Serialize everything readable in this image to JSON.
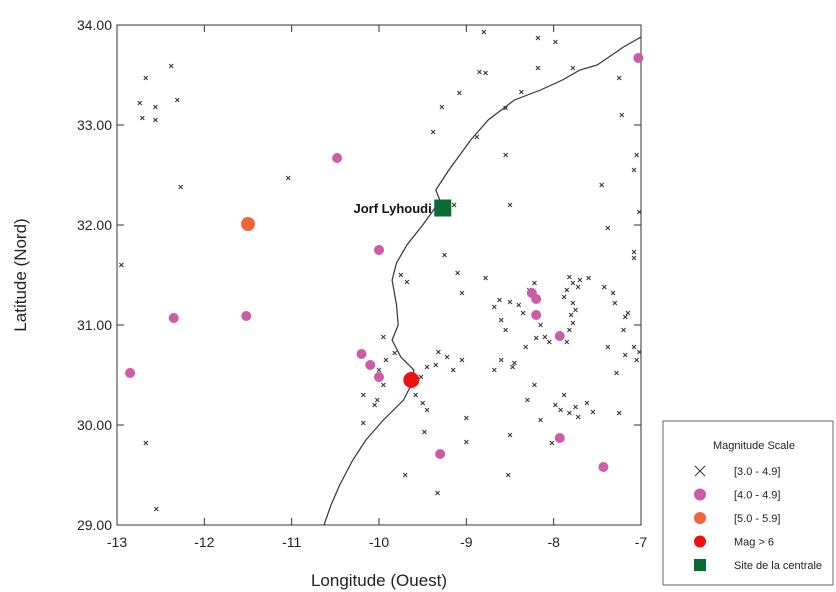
{
  "chart_data": {
    "type": "scatter",
    "title": "",
    "xlabel": "Longitude (Ouest)",
    "ylabel": "Latitude (Nord)",
    "xlim": [
      -13,
      -7
    ],
    "ylim": [
      29,
      34
    ],
    "x_ticks": [
      "-13",
      "-12",
      "-11",
      "-10",
      "-9",
      "-8",
      "-7"
    ],
    "y_ticks": [
      "29.00",
      "30.00",
      "31.00",
      "32.00",
      "33.00",
      "34.00"
    ],
    "grid": false,
    "legend_position": "bottom-right, outside plot",
    "site": {
      "label": "Jorf Lyhoudi",
      "lon": -9.27,
      "lat": 32.17,
      "color": "#0a6b34"
    },
    "coastline": [
      [
        -7.0,
        33.88
      ],
      [
        -7.2,
        33.78
      ],
      [
        -7.5,
        33.6
      ],
      [
        -7.7,
        33.55
      ],
      [
        -7.9,
        33.45
      ],
      [
        -8.15,
        33.35
      ],
      [
        -8.45,
        33.25
      ],
      [
        -8.75,
        33.05
      ],
      [
        -8.95,
        32.85
      ],
      [
        -9.2,
        32.55
      ],
      [
        -9.35,
        32.35
      ],
      [
        -9.3,
        32.24
      ],
      [
        -9.5,
        32.0
      ],
      [
        -9.68,
        31.8
      ],
      [
        -9.8,
        31.62
      ],
      [
        -9.85,
        31.45
      ],
      [
        -9.8,
        31.2
      ],
      [
        -9.78,
        31.0
      ],
      [
        -9.85,
        30.85
      ],
      [
        -9.75,
        30.68
      ],
      [
        -9.6,
        30.55
      ],
      [
        -9.62,
        30.42
      ],
      [
        -9.72,
        30.25
      ],
      [
        -9.95,
        30.05
      ],
      [
        -10.15,
        29.85
      ],
      [
        -10.3,
        29.65
      ],
      [
        -10.45,
        29.4
      ],
      [
        -10.55,
        29.2
      ],
      [
        -10.63,
        29.0
      ]
    ],
    "series": [
      {
        "name": "[3.0 - 4.9]",
        "marker": "x",
        "color": "#333333",
        "points": [
          [
            -12.74,
            33.22
          ],
          [
            -12.67,
            33.47
          ],
          [
            -12.56,
            33.18
          ],
          [
            -12.56,
            33.05
          ],
          [
            -12.38,
            33.59
          ],
          [
            -12.31,
            33.25
          ],
          [
            -12.71,
            33.07
          ],
          [
            -12.27,
            32.38
          ],
          [
            -11.04,
            32.47
          ],
          [
            -12.95,
            31.6
          ],
          [
            -12.67,
            29.82
          ],
          [
            -12.55,
            29.16
          ],
          [
            -8.8,
            33.93
          ],
          [
            -8.18,
            33.87
          ],
          [
            -7.98,
            33.83
          ],
          [
            -8.85,
            33.53
          ],
          [
            -8.78,
            33.52
          ],
          [
            -8.18,
            33.57
          ],
          [
            -7.78,
            33.57
          ],
          [
            -7.25,
            33.47
          ],
          [
            -8.37,
            33.33
          ],
          [
            -9.08,
            33.32
          ],
          [
            -9.28,
            33.18
          ],
          [
            -8.55,
            33.17
          ],
          [
            -7.22,
            33.1
          ],
          [
            -9.38,
            32.93
          ],
          [
            -8.88,
            32.88
          ],
          [
            -8.55,
            32.7
          ],
          [
            -7.05,
            32.7
          ],
          [
            -7.08,
            32.55
          ],
          [
            -7.45,
            32.4
          ],
          [
            -8.5,
            32.2
          ],
          [
            -9.14,
            32.2
          ],
          [
            -7.38,
            31.97
          ],
          [
            -7.02,
            32.13
          ],
          [
            -7.08,
            31.73
          ],
          [
            -7.08,
            31.67
          ],
          [
            -9.75,
            31.5
          ],
          [
            -9.68,
            31.43
          ],
          [
            -9.25,
            31.7
          ],
          [
            -9.1,
            31.52
          ],
          [
            -9.05,
            31.32
          ],
          [
            -8.78,
            31.47
          ],
          [
            -8.62,
            31.25
          ],
          [
            -8.68,
            31.18
          ],
          [
            -8.5,
            31.23
          ],
          [
            -8.4,
            31.2
          ],
          [
            -8.55,
            30.95
          ],
          [
            -8.6,
            31.05
          ],
          [
            -8.22,
            31.42
          ],
          [
            -8.28,
            31.35
          ],
          [
            -8.35,
            31.12
          ],
          [
            -8.15,
            31.0
          ],
          [
            -8.1,
            30.88
          ],
          [
            -8.05,
            30.83
          ],
          [
            -8.2,
            30.87
          ],
          [
            -8.32,
            30.78
          ],
          [
            -7.85,
            30.83
          ],
          [
            -7.82,
            31.48
          ],
          [
            -7.78,
            31.42
          ],
          [
            -7.72,
            31.38
          ],
          [
            -7.7,
            31.45
          ],
          [
            -7.85,
            31.35
          ],
          [
            -7.88,
            31.28
          ],
          [
            -7.78,
            31.22
          ],
          [
            -7.75,
            31.15
          ],
          [
            -7.8,
            31.1
          ],
          [
            -7.78,
            31.02
          ],
          [
            -7.82,
            30.95
          ],
          [
            -7.6,
            31.47
          ],
          [
            -7.42,
            31.38
          ],
          [
            -7.3,
            31.22
          ],
          [
            -7.32,
            31.32
          ],
          [
            -7.18,
            31.08
          ],
          [
            -7.15,
            31.12
          ],
          [
            -7.2,
            30.95
          ],
          [
            -7.08,
            30.78
          ],
          [
            -7.02,
            30.73
          ],
          [
            -7.05,
            30.65
          ],
          [
            -7.18,
            30.7
          ],
          [
            -7.28,
            30.52
          ],
          [
            -7.38,
            30.78
          ],
          [
            -8.6,
            30.65
          ],
          [
            -8.45,
            30.62
          ],
          [
            -8.47,
            30.58
          ],
          [
            -8.22,
            30.4
          ],
          [
            -8.3,
            30.25
          ],
          [
            -7.88,
            30.3
          ],
          [
            -7.98,
            30.2
          ],
          [
            -7.92,
            30.15
          ],
          [
            -7.82,
            30.12
          ],
          [
            -7.75,
            30.18
          ],
          [
            -7.72,
            30.08
          ],
          [
            -7.62,
            30.22
          ],
          [
            -7.55,
            30.13
          ],
          [
            -7.25,
            30.12
          ],
          [
            -8.15,
            30.05
          ],
          [
            -8.02,
            29.82
          ],
          [
            -8.5,
            29.9
          ],
          [
            -8.52,
            29.5
          ],
          [
            -9.22,
            30.68
          ],
          [
            -9.05,
            30.65
          ],
          [
            -9.15,
            30.55
          ],
          [
            -9.32,
            30.73
          ],
          [
            -9.35,
            30.6
          ],
          [
            -9.45,
            30.58
          ],
          [
            -9.52,
            30.48
          ],
          [
            -9.58,
            30.3
          ],
          [
            -9.5,
            30.22
          ],
          [
            -9.45,
            30.15
          ],
          [
            -9.48,
            29.93
          ],
          [
            -9.0,
            30.07
          ],
          [
            -9.0,
            29.83
          ],
          [
            -9.7,
            29.5
          ],
          [
            -9.33,
            29.32
          ],
          [
            -8.68,
            30.55
          ],
          [
            -9.92,
            30.65
          ],
          [
            -9.95,
            30.88
          ],
          [
            -10.0,
            30.55
          ],
          [
            -10.02,
            30.25
          ],
          [
            -10.18,
            30.3
          ],
          [
            -10.05,
            30.2
          ],
          [
            -10.18,
            30.02
          ],
          [
            -9.95,
            30.4
          ],
          [
            -9.82,
            30.72
          ]
        ]
      },
      {
        "name": "[4.0 - 4.9]",
        "marker": "circle",
        "color": "#cc5ba8",
        "points": [
          [
            -7.03,
            33.67
          ],
          [
            -10.48,
            32.67
          ],
          [
            -10.0,
            31.75
          ],
          [
            -12.35,
            31.07
          ],
          [
            -11.52,
            31.09
          ],
          [
            -12.85,
            30.52
          ],
          [
            -10.2,
            30.71
          ],
          [
            -10.1,
            30.6
          ],
          [
            -10.0,
            30.48
          ],
          [
            -9.3,
            29.71
          ],
          [
            -8.25,
            31.32
          ],
          [
            -8.2,
            31.26
          ],
          [
            -8.2,
            31.1
          ],
          [
            -7.93,
            30.89
          ],
          [
            -7.93,
            29.87
          ],
          [
            -7.43,
            29.58
          ]
        ]
      },
      {
        "name": "[5.0 - 5.9]",
        "marker": "circle",
        "color": "#f0643a",
        "points": [
          [
            -11.5,
            32.01
          ]
        ]
      },
      {
        "name": "Mag > 6",
        "marker": "circle",
        "color": "#ee1111",
        "points": [
          [
            -9.63,
            30.45
          ]
        ]
      }
    ],
    "legend": {
      "title": "Magnitude Scale",
      "entries": [
        {
          "label": "[3.0 - 4.9]",
          "marker": "x",
          "color": "#333333"
        },
        {
          "label": "[4.0 - 4.9]",
          "marker": "circle",
          "color": "#cc5ba8"
        },
        {
          "label": "[5.0 - 5.9]",
          "marker": "circle",
          "color": "#f0643a"
        },
        {
          "label": "Mag > 6",
          "marker": "circle",
          "color": "#ee1111"
        },
        {
          "label": "Site de la centrale",
          "marker": "square",
          "color": "#0a6b34"
        }
      ]
    }
  }
}
